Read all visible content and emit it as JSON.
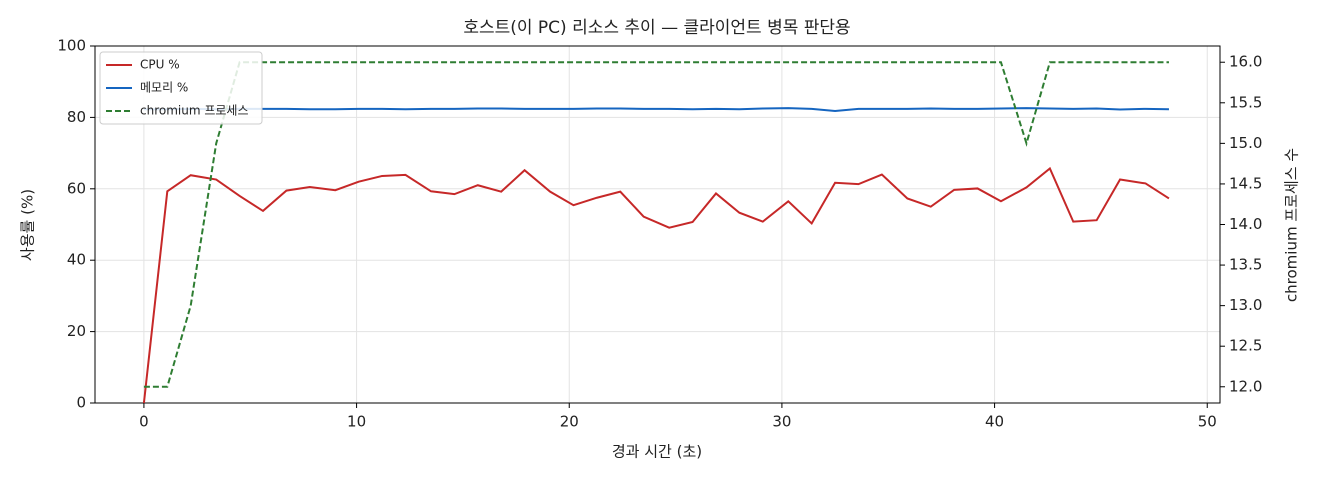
{
  "chart_data": {
    "type": "line",
    "title": "호스트(이 PC) 리소스 추이 — 클라이언트 병목 판단용",
    "xlabel": "경과 시간 (초)",
    "ylabel": "사용률 (%)",
    "y2label": "chromium 프로세스 수",
    "x": [
      0,
      1.1,
      2.2,
      3.4,
      4.5,
      5.6,
      6.7,
      7.8,
      9.0,
      10.1,
      11.2,
      12.3,
      13.5,
      14.6,
      15.7,
      16.8,
      17.9,
      19.1,
      20.2,
      21.3,
      22.4,
      23.5,
      24.7,
      25.8,
      26.9,
      28.0,
      29.1,
      30.3,
      31.4,
      32.5,
      33.6,
      34.7,
      35.9,
      37.0,
      38.1,
      39.2,
      40.3,
      41.5,
      42.6,
      43.7,
      44.8,
      45.9,
      47.1,
      48.2
    ],
    "series": [
      {
        "name": "CPU %",
        "color": "#c62828",
        "linestyle": "solid",
        "values": [
          0,
          59.3,
          63.8,
          62.6,
          58,
          53.8,
          59.5,
          60.5,
          59.6,
          62,
          63.6,
          63.9,
          59.3,
          58.5,
          61,
          59.2,
          65.2,
          59.2,
          55.4,
          57.5,
          59.2,
          52.2,
          49.1,
          50.7,
          58.7,
          53.3,
          50.8,
          56.5,
          50.3,
          61.7,
          61.3,
          64,
          57.3,
          55,
          59.7,
          60.1,
          56.5,
          60.4,
          65.7,
          50.8,
          51.2,
          62.6,
          61.5,
          57.3
        ]
      },
      {
        "name": "메모리 %",
        "color": "#1565c0",
        "linestyle": "solid",
        "values": [
          82.3,
          82.3,
          82.4,
          82.3,
          82.4,
          82.4,
          82.4,
          82.3,
          82.3,
          82.4,
          82.4,
          82.3,
          82.4,
          82.4,
          82.5,
          82.5,
          82.4,
          82.4,
          82.4,
          82.5,
          82.5,
          82.4,
          82.4,
          82.3,
          82.4,
          82.3,
          82.5,
          82.6,
          82.4,
          81.8,
          82.4,
          82.4,
          82.4,
          82.5,
          82.4,
          82.4,
          82.5,
          82.6,
          82.5,
          82.4,
          82.5,
          82.2,
          82.4,
          82.3
        ]
      },
      {
        "name": "chromium 프로세스",
        "color": "#2e7d32",
        "linestyle": "dashed",
        "axis": "y2",
        "values": [
          12,
          12,
          13,
          15,
          16,
          16,
          16,
          16,
          16,
          16,
          16,
          16,
          16,
          16,
          16,
          16,
          16,
          16,
          16,
          16,
          16,
          16,
          16,
          16,
          16,
          16,
          16,
          16,
          16,
          16,
          16,
          16,
          16,
          16,
          16,
          16,
          16,
          15,
          16,
          16,
          16,
          16,
          16,
          16
        ]
      }
    ],
    "xlim": [
      -2.3,
      50.6
    ],
    "xticks": [
      0,
      10,
      20,
      30,
      40,
      50
    ],
    "ylim": [
      0,
      100
    ],
    "yticks": [
      0,
      20,
      40,
      60,
      80,
      100
    ],
    "y2lim": [
      11.8,
      16.2
    ],
    "y2ticks": [
      {
        "value": 12,
        "label": "12.0"
      },
      12.5,
      {
        "value": 13,
        "label": "13.0"
      },
      13.5,
      {
        "value": 14,
        "label": "14.0"
      },
      14.5,
      {
        "value": 15,
        "label": "15.0"
      },
      15.5,
      {
        "value": 16,
        "label": "16.0"
      }
    ],
    "grid": true,
    "legend": "upper left"
  }
}
